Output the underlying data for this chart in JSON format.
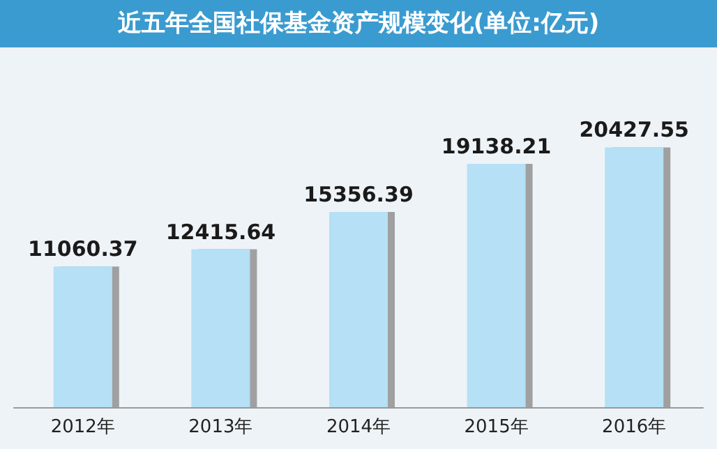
{
  "chart_data": {
    "type": "bar",
    "title": "近五年全国社保基金资产规模变化(单位:亿元)",
    "categories": [
      "2012年",
      "2013年",
      "2014年",
      "2015年",
      "2016年"
    ],
    "values": [
      11060.37,
      12415.64,
      15356.39,
      19138.21,
      20427.55
    ],
    "color": "#b5e0f6",
    "data_labels": true
  }
}
